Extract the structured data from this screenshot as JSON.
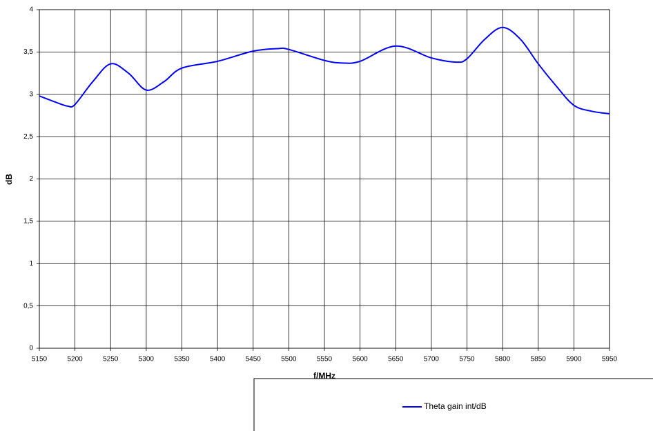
{
  "chart_data": {
    "type": "line",
    "x_label": "f/MHz",
    "y_label": "dB",
    "x": [
      5150,
      5175,
      5190,
      5200,
      5225,
      5250,
      5275,
      5300,
      5325,
      5350,
      5400,
      5450,
      5485,
      5500,
      5550,
      5575,
      5600,
      5650,
      5700,
      5735,
      5750,
      5775,
      5800,
      5825,
      5850,
      5875,
      5900,
      5925,
      5950
    ],
    "series": [
      {
        "name": "Theta gain int/dB",
        "color": "#0000ff",
        "values": [
          2.98,
          2.9,
          2.86,
          2.88,
          3.15,
          3.36,
          3.25,
          3.05,
          3.15,
          3.31,
          3.39,
          3.51,
          3.54,
          3.53,
          3.4,
          3.37,
          3.39,
          3.57,
          3.43,
          3.38,
          3.42,
          3.65,
          3.79,
          3.65,
          3.36,
          3.1,
          2.87,
          2.8,
          2.77
        ]
      }
    ],
    "xlim": [
      5150,
      5950
    ],
    "xticks": [
      5150,
      5200,
      5250,
      5300,
      5350,
      5400,
      5450,
      5500,
      5550,
      5600,
      5650,
      5700,
      5750,
      5800,
      5850,
      5900,
      5950
    ],
    "ylim": [
      0,
      4
    ],
    "yticks": [
      0,
      {
        "value": 0.5,
        "label": "0,5"
      },
      1,
      {
        "value": 1.5,
        "label": "1,5"
      },
      2,
      {
        "value": 2.5,
        "label": "2,5"
      },
      3,
      {
        "value": 3.5,
        "label": "3,5"
      },
      4
    ],
    "grid": true
  }
}
